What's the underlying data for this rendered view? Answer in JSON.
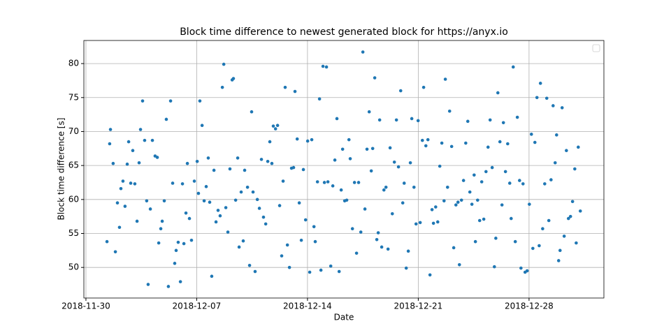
{
  "chart_data": {
    "type": "scatter",
    "title": "Block time difference to newest generated block for https://anyx.io",
    "xlabel": "Date",
    "ylabel": "Block time difference [s]",
    "color": "#1f77b4",
    "grid": true,
    "legend": "upper right",
    "xlim": [
      737027.87,
      737060.73
    ],
    "ylim": [
      45.5,
      83.4
    ],
    "xticks": [
      {
        "value": 737028,
        "label": "2018-11-30"
      },
      {
        "value": 737035,
        "label": "2018-12-07"
      },
      {
        "value": 737042,
        "label": "2018-12-14"
      },
      {
        "value": 737049,
        "label": "2018-12-21"
      },
      {
        "value": 737056,
        "label": "2018-12-28"
      }
    ],
    "yticks": [
      50,
      55,
      60,
      65,
      70,
      75,
      80
    ],
    "x": [
      737029.33,
      737029.5,
      737029.55,
      737029.72,
      737029.86,
      737029.99,
      737030.12,
      737030.21,
      737030.34,
      737030.47,
      737030.61,
      737030.7,
      737030.83,
      737030.96,
      737031.09,
      737031.23,
      737031.36,
      737031.45,
      737031.58,
      737031.71,
      737031.84,
      737031.93,
      737032.07,
      737032.2,
      737032.37,
      737032.51,
      737032.6,
      737032.73,
      737032.82,
      737032.95,
      737033.08,
      737033.21,
      737033.35,
      737033.48,
      737033.61,
      737033.7,
      737033.83,
      737033.97,
      737034.1,
      737034.19,
      737034.32,
      737034.41,
      737034.54,
      737034.67,
      737034.85,
      737035.03,
      737035.11,
      737035.2,
      737035.34,
      737035.47,
      737035.6,
      737035.73,
      737035.82,
      737035.95,
      737036.09,
      737036.22,
      737036.35,
      737036.48,
      737036.62,
      737036.71,
      737036.84,
      737036.97,
      737037.1,
      737037.24,
      737037.32,
      737037.46,
      737037.59,
      737037.68,
      737037.81,
      737037.94,
      737038.03,
      737038.21,
      737038.34,
      737038.47,
      737038.56,
      737038.69,
      737038.83,
      737038.96,
      737039.09,
      737039.22,
      737039.36,
      737039.49,
      737039.62,
      737039.75,
      737039.84,
      737039.98,
      737040.11,
      737040.24,
      737040.37,
      737040.46,
      737040.59,
      737040.73,
      737040.86,
      737040.99,
      737041.12,
      737041.21,
      737041.35,
      737041.48,
      737041.61,
      737041.74,
      737041.88,
      737042.01,
      737042.14,
      737042.27,
      737042.41,
      737042.49,
      737042.63,
      737042.76,
      737042.85,
      737042.98,
      737043.07,
      737043.2,
      737043.29,
      737043.47,
      737043.6,
      737043.73,
      737043.86,
      737044.0,
      737044.13,
      737044.22,
      737044.35,
      737044.48,
      737044.62,
      737044.7,
      737044.84,
      737044.97,
      737045.1,
      737045.23,
      737045.37,
      737045.5,
      737045.63,
      737045.76,
      737045.9,
      737046.03,
      737046.12,
      737046.25,
      737046.38,
      737046.47,
      737046.56,
      737046.69,
      737046.83,
      737046.96,
      737047.09,
      737047.22,
      737047.36,
      737047.49,
      737047.62,
      737047.75,
      737047.89,
      737048.02,
      737048.11,
      737048.24,
      737048.37,
      737048.5,
      737048.59,
      737048.73,
      737048.86,
      737048.99,
      737049.12,
      737049.26,
      737049.34,
      737049.48,
      737049.61,
      737049.74,
      737049.87,
      737049.96,
      737050.1,
      737050.23,
      737050.36,
      737050.49,
      737050.63,
      737050.71,
      737050.85,
      737050.98,
      737051.11,
      737051.24,
      737051.38,
      737051.51,
      737051.6,
      737051.73,
      737051.86,
      737052.0,
      737052.13,
      737052.26,
      737052.39,
      737052.53,
      737052.61,
      737052.75,
      737052.88,
      737053.01,
      737053.14,
      737053.28,
      737053.41,
      737053.54,
      737053.67,
      737053.81,
      737053.9,
      737054.03,
      737054.16,
      737054.29,
      737054.38,
      737054.51,
      737054.65,
      737054.78,
      737054.87,
      737055.0,
      737055.13,
      737055.26,
      737055.4,
      737055.49,
      737055.62,
      737055.75,
      737055.88,
      737056.02,
      737056.15,
      737056.24,
      737056.37,
      737056.5,
      737056.64,
      737056.72,
      737056.86,
      737056.99,
      737057.12,
      737057.25,
      737057.39,
      737057.52,
      737057.65,
      737057.74,
      737057.87,
      737057.96,
      737058.09,
      737058.22,
      737058.36,
      737058.49,
      737058.62,
      737058.75,
      737058.89,
      737058.98,
      737059.11,
      737059.24
    ],
    "values": [
      53.8,
      68.2,
      70.3,
      65.3,
      52.3,
      59.5,
      55.9,
      61.6,
      62.7,
      59.0,
      65.2,
      68.5,
      62.4,
      67.2,
      62.3,
      56.8,
      65.4,
      70.3,
      74.5,
      68.7,
      59.8,
      47.5,
      58.6,
      68.7,
      66.4,
      66.2,
      53.6,
      55.7,
      56.8,
      59.8,
      71.8,
      47.2,
      74.5,
      62.4,
      50.6,
      52.5,
      53.7,
      47.9,
      62.3,
      53.5,
      58.0,
      65.3,
      57.2,
      54.0,
      62.7,
      65.6,
      60.9,
      74.5,
      70.9,
      59.8,
      61.9,
      66.1,
      59.6,
      48.7,
      64.3,
      56.7,
      58.4,
      57.6,
      76.5,
      79.9,
      58.8,
      55.2,
      64.5,
      77.6,
      77.8,
      59.9,
      66.1,
      53.0,
      61.1,
      53.9,
      64.3,
      61.8,
      50.3,
      72.9,
      61.1,
      49.4,
      60.0,
      58.7,
      65.9,
      57.4,
      56.4,
      65.6,
      68.5,
      65.3,
      70.8,
      70.4,
      70.9,
      59.1,
      51.7,
      62.7,
      76.5,
      53.3,
      50.0,
      64.6,
      64.7,
      75.9,
      68.9,
      59.5,
      54.0,
      64.4,
      57.0,
      68.6,
      49.3,
      68.8,
      56.0,
      53.8,
      62.6,
      74.8,
      49.6,
      79.6,
      62.5,
      79.5,
      62.6,
      50.2,
      62.0,
      65.8,
      71.9,
      49.4,
      61.4,
      67.4,
      59.8,
      59.9,
      68.8,
      66.0,
      55.7,
      62.5,
      52.1,
      62.5,
      55.2,
      81.7,
      58.6,
      67.4,
      72.9,
      64.2,
      67.5,
      77.9,
      54.1,
      55.1,
      71.7,
      53.0,
      61.4,
      61.8,
      52.7,
      67.6,
      57.9,
      65.5,
      71.7,
      64.8,
      76.0,
      59.5,
      62.4,
      49.9,
      52.4,
      65.4,
      71.9,
      61.8,
      56.4,
      71.6,
      56.6,
      68.7,
      76.5,
      67.9,
      68.8,
      48.9,
      58.5,
      56.5,
      58.9,
      56.7,
      64.9,
      68.3,
      59.8,
      77.7,
      61.8,
      73.0,
      67.8,
      52.9,
      59.2,
      59.6,
      50.4,
      59.9,
      62.8,
      68.3,
      71.5,
      61.1,
      59.3,
      63.6,
      53.8,
      59.9,
      56.9,
      62.6,
      57.1,
      64.1,
      67.7,
      71.7,
      64.7,
      50.1,
      54.3,
      75.7,
      68.5,
      59.2,
      71.3,
      64.1,
      68.2,
      62.4,
      57.2,
      79.5,
      53.8,
      72.1,
      62.8,
      49.9,
      62.3,
      49.3,
      49.5,
      59.3,
      69.6,
      52.8,
      68.4,
      75.0,
      53.2,
      77.1,
      55.7,
      62.3,
      74.9,
      56.9,
      62.9,
      73.8,
      65.4,
      69.5,
      51.0,
      52.5,
      73.5,
      54.6,
      67.2,
      57.2,
      57.5,
      59.7,
      64.5,
      53.6,
      67.7,
      58.3
    ]
  }
}
